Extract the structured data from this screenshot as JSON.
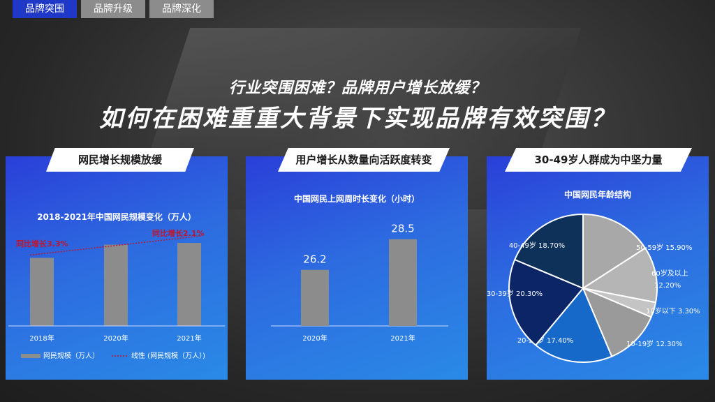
{
  "tabs": [
    {
      "label": "品牌突围",
      "active": true
    },
    {
      "label": "品牌升级",
      "active": false
    },
    {
      "label": "品牌深化",
      "active": false
    }
  ],
  "headline": {
    "line1": "行业突围困难？品牌用户增长放缓？",
    "line2": "如何在困难重重大背景下实现品牌有效突围？"
  },
  "panels": [
    {
      "title": "网民增长规模放缓"
    },
    {
      "title": "用户增长从数量向活跃度转变"
    },
    {
      "title": "30-49岁人群成为中坚力量"
    }
  ],
  "chart_data": [
    {
      "type": "bar",
      "title": "2018-2021年中国网民规模变化（万人）",
      "categories": [
        "2018年",
        "2020年",
        "2021年"
      ],
      "values": [
        82851,
        98899,
        101074
      ],
      "ylim": [
        0,
        130000
      ],
      "annotations": [
        "同比增长3.3%",
        "同比增长2.1%"
      ],
      "legend": [
        "网民规模（万人）",
        "线性 (网民规模（万人）)"
      ],
      "bar_color": "#8c8c8c",
      "annotation_color": "#c0162c"
    },
    {
      "type": "bar",
      "title": "中国网民上网周时长变化（小时）",
      "categories": [
        "2020年",
        "2021年"
      ],
      "values": [
        26.2,
        28.5
      ],
      "value_labels": [
        "26.2",
        "28.5"
      ],
      "ylim": [
        22,
        30
      ],
      "bar_color": "#8c8c8c"
    },
    {
      "type": "pie",
      "title": "中国网民年龄结构",
      "slices": [
        {
          "label": "50-59岁",
          "value": 15.9,
          "pct": "15.90%",
          "color": "#a8a8a8"
        },
        {
          "label": "60岁及以上",
          "value": 12.2,
          "pct": "12.20%",
          "color": "#b5b5b5"
        },
        {
          "label": "10岁以下",
          "value": 3.3,
          "pct": "3.30%",
          "color": "#c4c4c4"
        },
        {
          "label": "10-19岁",
          "value": 12.3,
          "pct": "12.30%",
          "color": "#9a9a9a"
        },
        {
          "label": "20-29岁",
          "value": 17.4,
          "pct": "17.40%",
          "color": "#1769c9"
        },
        {
          "label": "30-39岁",
          "value": 20.3,
          "pct": "20.30%",
          "color": "#0c2566"
        },
        {
          "label": "40-49岁",
          "value": 18.7,
          "pct": "18.70%",
          "color": "#0d3158"
        }
      ]
    }
  ]
}
